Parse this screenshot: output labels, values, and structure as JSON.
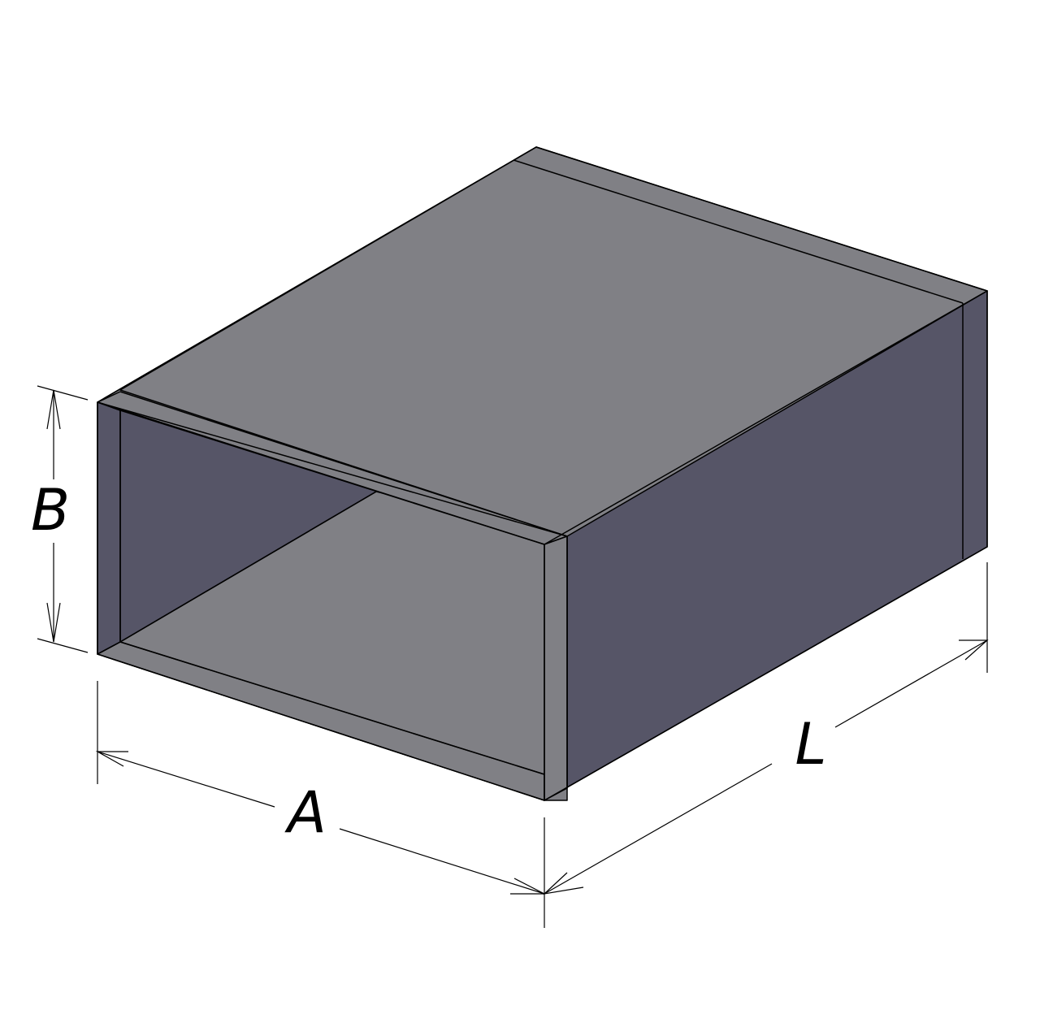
{
  "labels": {
    "width": "A",
    "height": "B",
    "length": "L"
  },
  "colors": {
    "background": "#ffffff",
    "top_face": "#808085",
    "side_face": "#565567",
    "inner_wall": "#565567",
    "inner_floor": "#808085",
    "rim": "#808085",
    "edge": "#000000",
    "dimension_line": "#000000"
  },
  "shape": "rectangular-duct"
}
